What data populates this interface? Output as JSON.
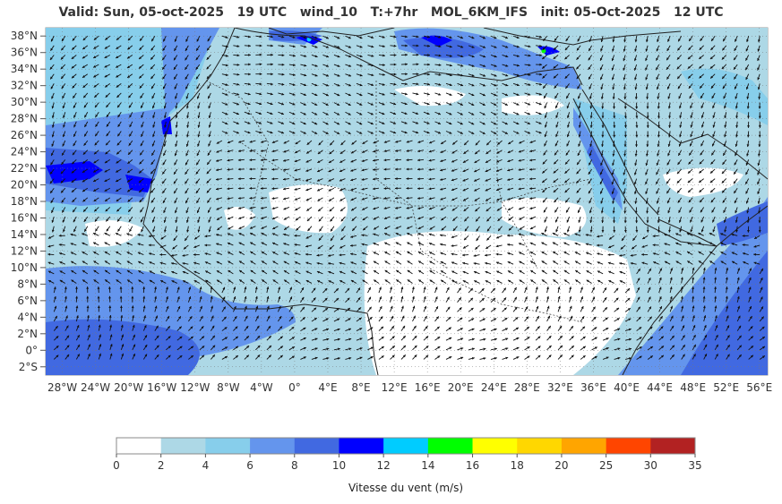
{
  "map": {
    "title": "Valid: Sun, 05-oct-2025   19 UTC   wind_10   T:+7hr   MOL_6KM_IFS   init: 05-Oct-2025   12 UTC",
    "lat_labels": [
      "38°N",
      "36°N",
      "34°N",
      "32°N",
      "30°N",
      "28°N",
      "26°N",
      "24°N",
      "22°N",
      "20°N",
      "18°N",
      "16°N",
      "14°N",
      "12°N",
      "10°N",
      "8°N",
      "6°N",
      "4°N",
      "2°N",
      "0°",
      "2°S"
    ],
    "lon_labels": [
      "28°W",
      "24°W",
      "20°W",
      "16°W",
      "12°W",
      "8°W",
      "4°W",
      "0°",
      "4°E",
      "8°E",
      "12°E",
      "16°E",
      "20°E",
      "24°E",
      "28°E",
      "32°E",
      "36°E",
      "40°E",
      "44°E",
      "48°E",
      "52°E",
      "56°E"
    ],
    "extent": {
      "lon": [
        -30,
        57
      ],
      "lat": [
        -3,
        39
      ]
    },
    "field": "wind_10",
    "arrow_color": "#111111"
  },
  "colorbar": {
    "title": "Vitesse du vent (m/s)",
    "ticks": [
      "0",
      "2",
      "4",
      "6",
      "8",
      "10",
      "12",
      "14",
      "16",
      "18",
      "20",
      "25",
      "30",
      "35"
    ],
    "colors": [
      "#ffffff",
      "#add8e6",
      "#87ceeb",
      "#6495ed",
      "#4169e1",
      "#0000ff",
      "#00ccff",
      "#00ff00",
      "#ffff00",
      "#ffd700",
      "#ffa500",
      "#ff4500",
      "#b22222"
    ]
  }
}
